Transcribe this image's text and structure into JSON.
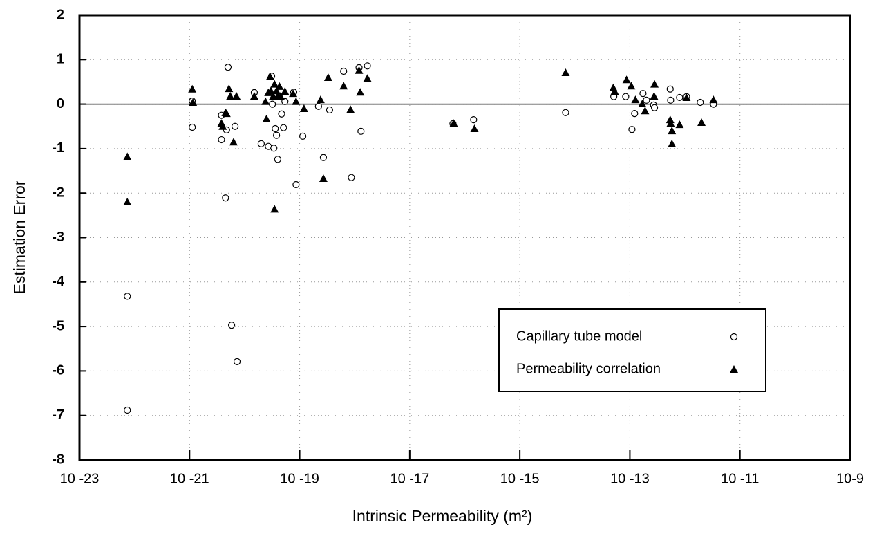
{
  "chart_data": {
    "type": "scatter",
    "x_label": "Intrinsic Permeability (m²)",
    "y_label": "Estimation Error",
    "log_x": true,
    "grid": true,
    "hline": 0,
    "legend": "lower right",
    "xlim": [
      1e-23,
      1e-09
    ],
    "xticks": [
      {
        "value": 1e-23,
        "label": "10 -23"
      },
      {
        "value": 1e-21,
        "label": "10 -21"
      },
      {
        "value": 1e-19,
        "label": "10 -19"
      },
      {
        "value": 1e-17,
        "label": "10 -17"
      },
      {
        "value": 1e-15,
        "label": "10 -15"
      },
      {
        "value": 1e-13,
        "label": "10 -13"
      },
      {
        "value": 1e-11,
        "label": "10 -11"
      },
      {
        "value": 1e-09,
        "label": "10-9"
      }
    ],
    "ylim": [
      -8,
      2
    ],
    "yticks": [
      -8,
      -7,
      -6,
      -5,
      -4,
      -3,
      -2,
      -1,
      0,
      1,
      2
    ],
    "series": [
      {
        "name": "Capillary tube model",
        "marker": "circle",
        "color": "#000000",
        "x": [
          7.4e-23,
          7.4e-23,
          1.12e-21,
          1.12e-21,
          3.8e-21,
          3.8e-21,
          4.7e-21,
          4.5e-21,
          5e-21,
          5.8e-21,
          6.7e-21,
          7.3e-21,
          1.5e-20,
          2e-20,
          2.7e-20,
          3.1e-20,
          3.2e-20,
          3.4e-20,
          3.6e-20,
          3.8e-20,
          4e-20,
          4.7e-20,
          5.1e-20,
          5.4e-20,
          7.8e-20,
          8.6e-20,
          1.14e-19,
          2.2e-19,
          2.7e-19,
          3.5e-19,
          6.3e-19,
          8.7e-19,
          1.2e-18,
          1.3e-18,
          1.7e-18,
          6.1e-17,
          1.45e-16,
          6.8e-15,
          5.1e-14,
          8.4e-14,
          1.09e-13,
          1.22e-13,
          1.73e-13,
          2e-13,
          2.7e-13,
          2.8e-13,
          5.4e-13,
          5.5e-13,
          8e-13,
          1.07e-12,
          1.9e-12,
          3.3e-12
        ],
        "values": [
          -4.32,
          -6.88,
          0.07,
          -0.52,
          -0.8,
          -0.25,
          -0.58,
          -2.11,
          0.83,
          -4.97,
          -0.5,
          -5.79,
          0.26,
          -0.89,
          -0.95,
          0.63,
          0,
          -0.99,
          -0.55,
          -0.7,
          -1.24,
          -0.22,
          -0.53,
          0.06,
          0.27,
          -1.81,
          -0.72,
          -0.05,
          -1.2,
          -0.13,
          0.74,
          -1.65,
          0.82,
          -0.61,
          0.86,
          -0.44,
          -0.35,
          -0.19,
          0.17,
          0.17,
          -0.57,
          -0.21,
          0.24,
          0.09,
          -0.02,
          -0.08,
          0.34,
          0.09,
          0.15,
          0.17,
          0.04,
          0
        ]
      },
      {
        "name": "Permeability correlation",
        "marker": "triangle",
        "color": "#000000",
        "x": [
          7.4e-23,
          7.4e-23,
          1.12e-21,
          1.15e-21,
          3.8e-21,
          4e-21,
          4.5e-21,
          4.7e-21,
          5.2e-21,
          5.5e-21,
          6.3e-21,
          7.1e-21,
          1.5e-20,
          2.4e-20,
          2.5e-20,
          2.7e-20,
          2.9e-20,
          3e-20,
          3.3e-20,
          3.5e-20,
          3.5e-20,
          3.8e-20,
          4e-20,
          4.3e-20,
          4.5e-20,
          5.4e-20,
          7.6e-20,
          8.6e-20,
          1.2e-19,
          2.4e-19,
          2.7e-19,
          3.3e-19,
          6.3e-19,
          8.4e-19,
          1.2e-18,
          1.26e-18,
          1.7e-18,
          6.3e-17,
          1.5e-16,
          6.8e-15,
          5e-14,
          5.3e-14,
          8.7e-14,
          1.06e-13,
          1.26e-13,
          1.68e-13,
          1.89e-13,
          2.75e-13,
          2.8e-13,
          5.4e-13,
          5.5e-13,
          5.8e-13,
          5.8e-13,
          8e-13,
          1.07e-12,
          2e-12,
          3.3e-12
        ],
        "values": [
          -1.18,
          -2.2,
          0.34,
          0.04,
          -0.43,
          -0.5,
          -0.19,
          -0.21,
          0.35,
          0.18,
          -0.85,
          0.18,
          0.18,
          0.06,
          -0.33,
          0.26,
          0.62,
          0.3,
          0.18,
          -2.36,
          0.45,
          0.3,
          0.18,
          0.4,
          0.18,
          0.29,
          0.24,
          0.06,
          -0.1,
          0.1,
          -1.67,
          0.6,
          0.41,
          -0.12,
          0.76,
          0.27,
          0.58,
          -0.43,
          -0.55,
          0.71,
          0.37,
          0.29,
          0.55,
          0.41,
          0.1,
          0.01,
          -0.15,
          0.18,
          0.45,
          -0.35,
          -0.43,
          -0.6,
          -0.89,
          -0.46,
          0.15,
          -0.41,
          0.1
        ]
      }
    ]
  }
}
